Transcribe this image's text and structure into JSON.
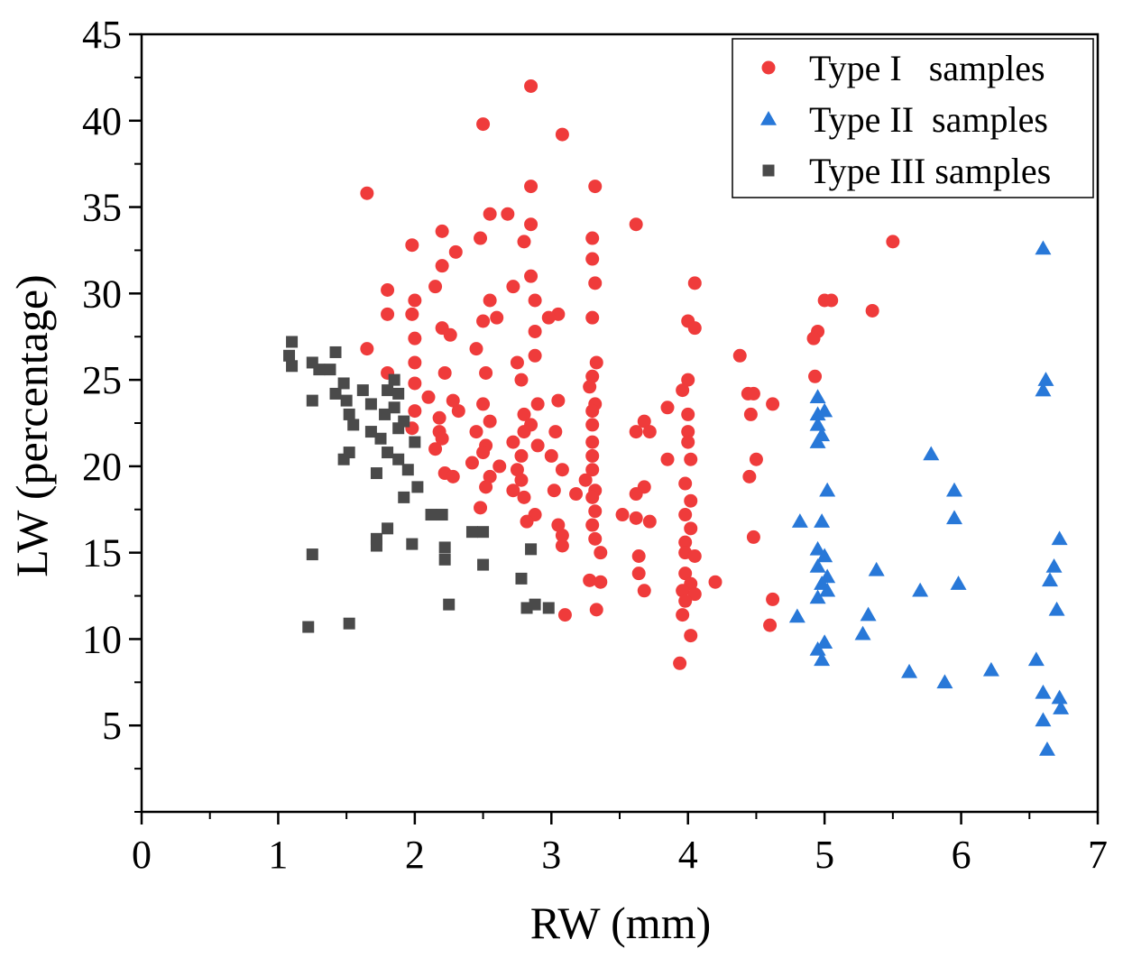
{
  "chart_data": {
    "type": "scatter",
    "title": "",
    "xlabel": "RW (mm)",
    "ylabel": "LW (percentage)",
    "xlim": [
      0,
      7
    ],
    "ylim": [
      0,
      45
    ],
    "xticks": [
      0,
      1,
      2,
      3,
      4,
      5,
      6,
      7
    ],
    "yticks": [
      5,
      10,
      15,
      20,
      25,
      30,
      35,
      40,
      45
    ],
    "grid": false,
    "legend_position": "top-right",
    "series": [
      {
        "name": "Type I   samples",
        "marker": "circle",
        "color": "#ef3b3b",
        "points": [
          [
            2.85,
            42.0
          ],
          [
            2.5,
            39.8
          ],
          [
            3.08,
            39.2
          ],
          [
            1.65,
            35.8
          ],
          [
            2.85,
            36.2
          ],
          [
            3.32,
            36.2
          ],
          [
            2.55,
            34.6
          ],
          [
            2.68,
            34.6
          ],
          [
            2.85,
            34.0
          ],
          [
            3.62,
            34.0
          ],
          [
            2.2,
            33.6
          ],
          [
            2.48,
            33.2
          ],
          [
            2.3,
            32.4
          ],
          [
            3.3,
            33.2
          ],
          [
            2.8,
            33.0
          ],
          [
            3.3,
            32.0
          ],
          [
            1.98,
            32.8
          ],
          [
            5.5,
            33.0
          ],
          [
            2.2,
            31.6
          ],
          [
            2.85,
            31.0
          ],
          [
            3.32,
            30.6
          ],
          [
            2.72,
            30.4
          ],
          [
            2.15,
            30.4
          ],
          [
            4.05,
            30.6
          ],
          [
            1.8,
            30.2
          ],
          [
            2.0,
            29.6
          ],
          [
            2.55,
            29.6
          ],
          [
            2.88,
            29.6
          ],
          [
            3.05,
            28.8
          ],
          [
            2.98,
            28.6
          ],
          [
            3.3,
            28.6
          ],
          [
            5.0,
            29.6
          ],
          [
            5.05,
            29.6
          ],
          [
            5.35,
            29.0
          ],
          [
            1.98,
            28.8
          ],
          [
            1.8,
            28.8
          ],
          [
            2.6,
            28.6
          ],
          [
            2.5,
            28.4
          ],
          [
            2.2,
            28.0
          ],
          [
            2.88,
            27.8
          ],
          [
            2.26,
            27.6
          ],
          [
            4.0,
            28.4
          ],
          [
            4.05,
            28.0
          ],
          [
            4.95,
            27.8
          ],
          [
            4.92,
            27.4
          ],
          [
            2.0,
            27.4
          ],
          [
            2.45,
            26.8
          ],
          [
            2.88,
            26.4
          ],
          [
            1.65,
            26.8
          ],
          [
            2.0,
            26.0
          ],
          [
            2.75,
            26.0
          ],
          [
            3.33,
            26.0
          ],
          [
            4.38,
            26.4
          ],
          [
            1.8,
            25.4
          ],
          [
            2.22,
            25.4
          ],
          [
            2.52,
            25.4
          ],
          [
            2.78,
            25.0
          ],
          [
            3.3,
            25.2
          ],
          [
            4.0,
            25.0
          ],
          [
            4.93,
            25.2
          ],
          [
            2.0,
            24.8
          ],
          [
            3.28,
            24.6
          ],
          [
            3.96,
            24.4
          ],
          [
            4.44,
            24.2
          ],
          [
            4.48,
            24.2
          ],
          [
            2.1,
            24.0
          ],
          [
            2.28,
            23.8
          ],
          [
            2.5,
            23.6
          ],
          [
            2.9,
            23.6
          ],
          [
            3.05,
            23.8
          ],
          [
            3.32,
            23.6
          ],
          [
            4.62,
            23.6
          ],
          [
            3.85,
            23.4
          ],
          [
            2.0,
            23.2
          ],
          [
            2.32,
            23.2
          ],
          [
            2.8,
            23.0
          ],
          [
            3.3,
            23.2
          ],
          [
            4.0,
            23.0
          ],
          [
            2.18,
            22.8
          ],
          [
            2.55,
            22.6
          ],
          [
            2.85,
            22.4
          ],
          [
            3.3,
            22.4
          ],
          [
            3.68,
            22.6
          ],
          [
            4.46,
            23.0
          ],
          [
            1.98,
            22.2
          ],
          [
            2.18,
            22.0
          ],
          [
            2.45,
            22.0
          ],
          [
            2.8,
            22.0
          ],
          [
            3.03,
            22.0
          ],
          [
            3.62,
            22.0
          ],
          [
            3.72,
            22.0
          ],
          [
            4.0,
            22.0
          ],
          [
            2.2,
            21.6
          ],
          [
            2.52,
            21.2
          ],
          [
            2.72,
            21.4
          ],
          [
            2.9,
            21.2
          ],
          [
            3.3,
            21.4
          ],
          [
            4.0,
            21.4
          ],
          [
            2.15,
            21.0
          ],
          [
            2.5,
            20.8
          ],
          [
            2.78,
            20.6
          ],
          [
            3.0,
            20.6
          ],
          [
            3.3,
            20.6
          ],
          [
            3.85,
            20.4
          ],
          [
            4.02,
            20.4
          ],
          [
            4.5,
            20.4
          ],
          [
            2.42,
            20.2
          ],
          [
            2.62,
            20.0
          ],
          [
            2.75,
            19.8
          ],
          [
            3.08,
            19.8
          ],
          [
            3.3,
            19.8
          ],
          [
            2.22,
            19.6
          ],
          [
            2.28,
            19.4
          ],
          [
            2.55,
            19.4
          ],
          [
            2.78,
            19.2
          ],
          [
            3.25,
            19.2
          ],
          [
            3.98,
            19.0
          ],
          [
            4.45,
            19.4
          ],
          [
            2.52,
            18.8
          ],
          [
            2.72,
            18.6
          ],
          [
            3.02,
            18.6
          ],
          [
            3.18,
            18.4
          ],
          [
            3.32,
            18.6
          ],
          [
            3.68,
            18.8
          ],
          [
            2.8,
            18.2
          ],
          [
            3.3,
            18.2
          ],
          [
            3.62,
            18.4
          ],
          [
            4.02,
            18.0
          ],
          [
            2.48,
            17.6
          ],
          [
            2.88,
            17.2
          ],
          [
            3.32,
            17.4
          ],
          [
            3.52,
            17.2
          ],
          [
            3.62,
            17.0
          ],
          [
            3.98,
            17.2
          ],
          [
            2.82,
            16.8
          ],
          [
            3.05,
            16.6
          ],
          [
            3.3,
            16.6
          ],
          [
            3.72,
            16.8
          ],
          [
            4.02,
            16.4
          ],
          [
            3.08,
            16.0
          ],
          [
            3.32,
            15.8
          ],
          [
            3.98,
            15.6
          ],
          [
            4.48,
            15.9
          ],
          [
            3.08,
            15.4
          ],
          [
            3.36,
            15.0
          ],
          [
            3.98,
            15.0
          ],
          [
            4.05,
            14.8
          ],
          [
            3.64,
            14.8
          ],
          [
            3.64,
            13.8
          ],
          [
            3.98,
            13.8
          ],
          [
            3.28,
            13.4
          ],
          [
            3.36,
            13.3
          ],
          [
            4.02,
            13.2
          ],
          [
            4.2,
            13.3
          ],
          [
            3.68,
            12.8
          ],
          [
            3.96,
            12.8
          ],
          [
            4.05,
            12.6
          ],
          [
            3.98,
            12.2
          ],
          [
            4.62,
            12.3
          ],
          [
            3.33,
            11.7
          ],
          [
            3.1,
            11.4
          ],
          [
            3.96,
            11.4
          ],
          [
            4.6,
            10.8
          ],
          [
            4.02,
            10.2
          ],
          [
            3.94,
            8.6
          ]
        ]
      },
      {
        "name": "Type II  samples",
        "marker": "triangle",
        "color": "#2878d8",
        "points": [
          [
            6.6,
            32.6
          ],
          [
            6.62,
            25.0
          ],
          [
            6.6,
            24.4
          ],
          [
            4.95,
            24.0
          ],
          [
            4.95,
            23.0
          ],
          [
            5.0,
            23.2
          ],
          [
            4.95,
            22.4
          ],
          [
            4.98,
            21.8
          ],
          [
            4.95,
            21.4
          ],
          [
            5.78,
            20.7
          ],
          [
            5.02,
            18.6
          ],
          [
            5.95,
            18.6
          ],
          [
            5.95,
            17.0
          ],
          [
            4.82,
            16.8
          ],
          [
            4.98,
            16.8
          ],
          [
            6.72,
            15.8
          ],
          [
            4.95,
            15.2
          ],
          [
            5.0,
            14.8
          ],
          [
            4.95,
            14.2
          ],
          [
            6.68,
            14.2
          ],
          [
            5.38,
            14.0
          ],
          [
            5.02,
            13.6
          ],
          [
            4.98,
            13.2
          ],
          [
            6.65,
            13.4
          ],
          [
            5.98,
            13.2
          ],
          [
            5.02,
            12.8
          ],
          [
            5.7,
            12.8
          ],
          [
            4.95,
            12.4
          ],
          [
            6.7,
            11.7
          ],
          [
            5.32,
            11.4
          ],
          [
            4.8,
            11.3
          ],
          [
            5.28,
            10.3
          ],
          [
            5.0,
            9.8
          ],
          [
            4.95,
            9.4
          ],
          [
            4.98,
            8.8
          ],
          [
            6.55,
            8.8
          ],
          [
            5.62,
            8.1
          ],
          [
            6.22,
            8.2
          ],
          [
            5.88,
            7.5
          ],
          [
            6.6,
            6.9
          ],
          [
            6.72,
            6.6
          ],
          [
            6.73,
            6.0
          ],
          [
            6.6,
            5.3
          ],
          [
            6.63,
            3.6
          ]
        ]
      },
      {
        "name": "Type III samples",
        "marker": "square",
        "color": "#4a4a4a",
        "points": [
          [
            1.1,
            27.2
          ],
          [
            1.08,
            26.4
          ],
          [
            1.1,
            25.8
          ],
          [
            1.42,
            26.6
          ],
          [
            1.25,
            26.0
          ],
          [
            1.3,
            25.6
          ],
          [
            1.38,
            25.6
          ],
          [
            1.85,
            25.0
          ],
          [
            1.48,
            24.8
          ],
          [
            1.62,
            24.4
          ],
          [
            1.8,
            24.4
          ],
          [
            1.42,
            24.2
          ],
          [
            1.88,
            24.2
          ],
          [
            1.5,
            23.8
          ],
          [
            1.25,
            23.8
          ],
          [
            1.68,
            23.6
          ],
          [
            1.85,
            23.4
          ],
          [
            1.78,
            23.0
          ],
          [
            1.52,
            23.0
          ],
          [
            1.92,
            22.6
          ],
          [
            1.88,
            22.2
          ],
          [
            1.55,
            22.4
          ],
          [
            1.68,
            22.0
          ],
          [
            1.75,
            21.6
          ],
          [
            2.0,
            21.4
          ],
          [
            1.8,
            20.8
          ],
          [
            1.52,
            20.8
          ],
          [
            1.48,
            20.4
          ],
          [
            1.88,
            20.4
          ],
          [
            1.72,
            19.6
          ],
          [
            1.95,
            19.8
          ],
          [
            2.02,
            18.8
          ],
          [
            1.92,
            18.2
          ],
          [
            2.12,
            17.2
          ],
          [
            2.2,
            17.2
          ],
          [
            1.8,
            16.4
          ],
          [
            2.42,
            16.2
          ],
          [
            2.5,
            16.2
          ],
          [
            1.72,
            15.8
          ],
          [
            1.72,
            15.4
          ],
          [
            1.98,
            15.5
          ],
          [
            2.22,
            15.3
          ],
          [
            2.85,
            15.2
          ],
          [
            2.22,
            14.6
          ],
          [
            2.5,
            14.3
          ],
          [
            1.25,
            14.9
          ],
          [
            2.78,
            13.5
          ],
          [
            2.25,
            12.0
          ],
          [
            2.82,
            11.8
          ],
          [
            2.88,
            12.0
          ],
          [
            2.98,
            11.8
          ],
          [
            1.52,
            10.9
          ],
          [
            1.22,
            10.7
          ]
        ]
      }
    ]
  }
}
